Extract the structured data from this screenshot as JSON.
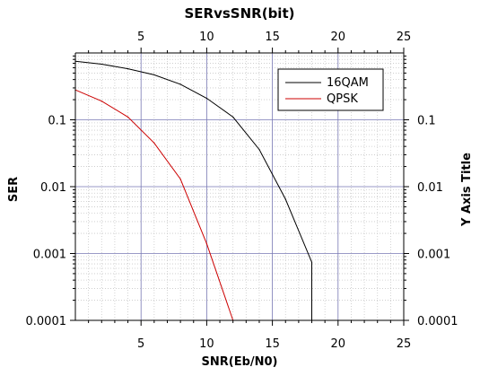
{
  "chart_data": {
    "type": "line",
    "title": "SERvsSNR(bit)",
    "xlabel": "SNR(Eb/N0)",
    "ylabel": "SER",
    "y2label": "Y Axis Title",
    "xlim": [
      0,
      25
    ],
    "ylim": [
      0.0001,
      1
    ],
    "yscale": "log",
    "x_ticks": [
      "5",
      "10",
      "15",
      "20",
      "25"
    ],
    "x_tick_values": [
      5,
      10,
      15,
      20,
      25
    ],
    "y_ticks": [
      "0.0001",
      "0.001",
      "0.01",
      "0.1"
    ],
    "y_tick_values": [
      0.0001,
      0.001,
      0.01,
      0.1
    ],
    "grid": true,
    "legend_position": "top-right",
    "series": [
      {
        "name": "16QAM",
        "color": "#000000",
        "x": [
          0,
          2,
          4,
          6,
          8,
          10,
          12,
          14,
          16,
          18,
          18
        ],
        "y": [
          0.75,
          0.68,
          0.58,
          0.47,
          0.34,
          0.21,
          0.11,
          0.036,
          0.0065,
          0.00074,
          0.0001
        ]
      },
      {
        "name": "QPSK",
        "color": "#cc0000",
        "x": [
          0,
          2,
          4,
          6,
          8,
          10,
          12
        ],
        "y": [
          0.28,
          0.19,
          0.11,
          0.045,
          0.013,
          0.0014,
          0.0001
        ]
      }
    ]
  }
}
